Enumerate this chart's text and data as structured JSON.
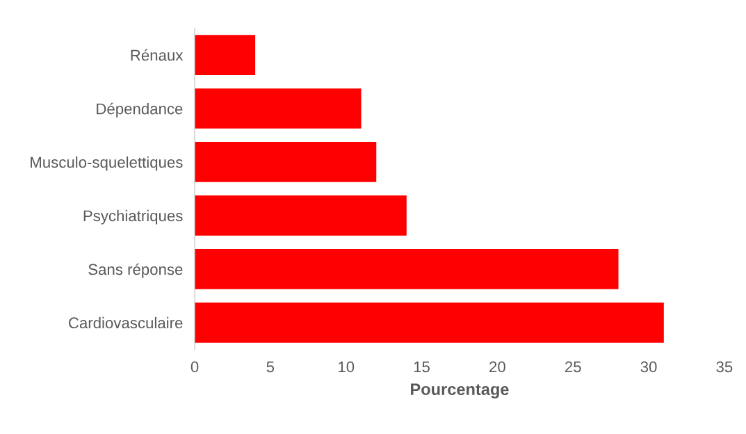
{
  "chart_data": {
    "type": "bar",
    "orientation": "horizontal",
    "xlabel": "Pourcentage",
    "categories": [
      "Rénaux",
      "Dépendance",
      "Musculo-squelettiques",
      "Psychiatriques",
      "Sans réponse",
      "Cardiovasculaire"
    ],
    "values": [
      4,
      11,
      12,
      14,
      28,
      31
    ],
    "color": "#ff0000",
    "xlim": [
      0,
      35
    ],
    "xticks": [
      0,
      5,
      10,
      15,
      20,
      25,
      30,
      35
    ],
    "grid": false,
    "legend": false
  }
}
